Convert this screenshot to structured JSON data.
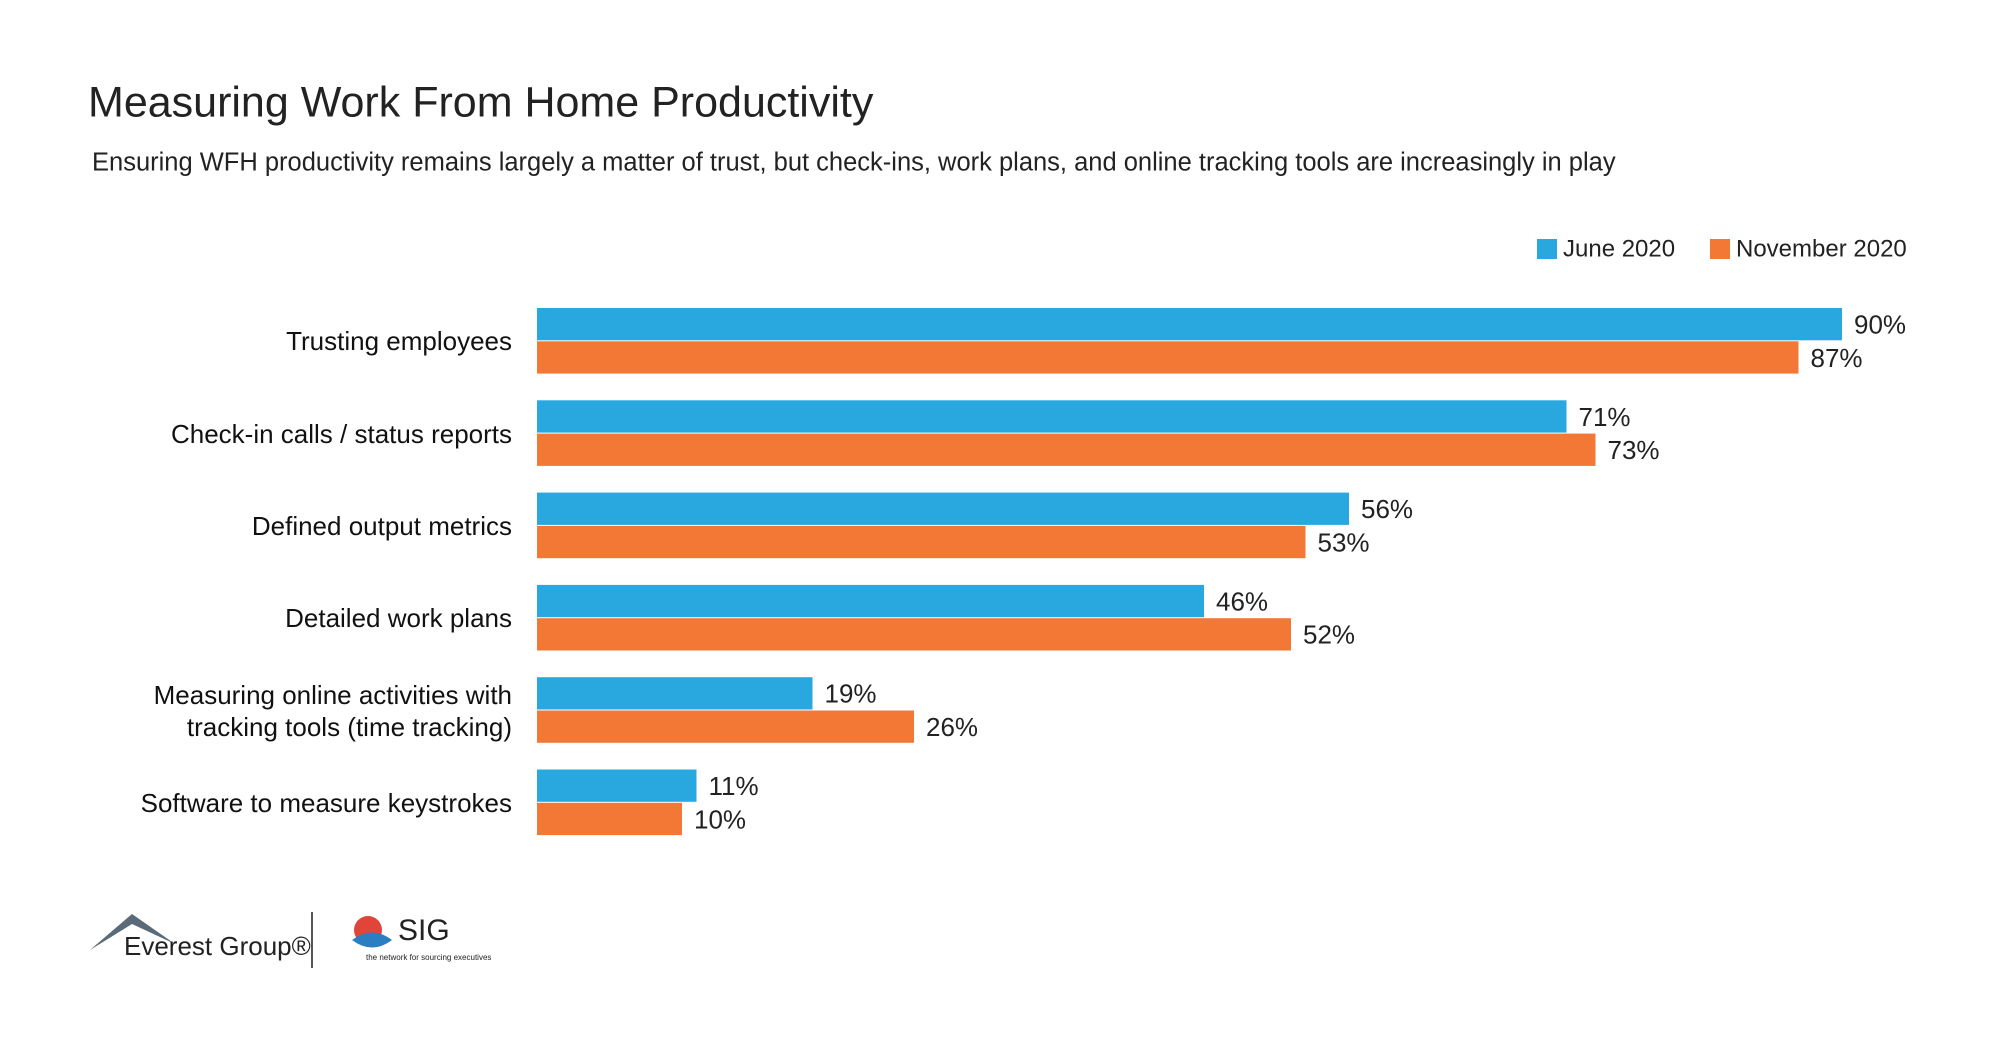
{
  "chart_data": {
    "type": "bar",
    "orientation": "horizontal",
    "title": "Measuring Work From Home Productivity",
    "subtitle": "Ensuring WFH productivity remains largely a matter of trust, but check-ins, work plans, and online tracking tools are increasingly in play",
    "categories": [
      "Trusting employees",
      "Check-in calls / status reports",
      "Defined output metrics",
      "Detailed work plans",
      "Measuring online activities with tracking tools (time tracking)",
      "Software to measure keystrokes"
    ],
    "series": [
      {
        "name": "June 2020",
        "color": "#29a8e0",
        "values": [
          90,
          71,
          56,
          46,
          19,
          11
        ],
        "value_labels": [
          "90%",
          "71%",
          "56%",
          "46%",
          "19%",
          "11%"
        ]
      },
      {
        "name": "November 2020",
        "color": "#f37735",
        "values": [
          87,
          73,
          53,
          52,
          26,
          10
        ],
        "value_labels": [
          "87%",
          "73%",
          "53%",
          "52%",
          "26%",
          "10%"
        ]
      }
    ],
    "legend": "top-right",
    "grid": false
  },
  "logos": {
    "everest": "Everest Group®",
    "sig": "SIG",
    "sig_tagline": "the network for sourcing executives"
  }
}
